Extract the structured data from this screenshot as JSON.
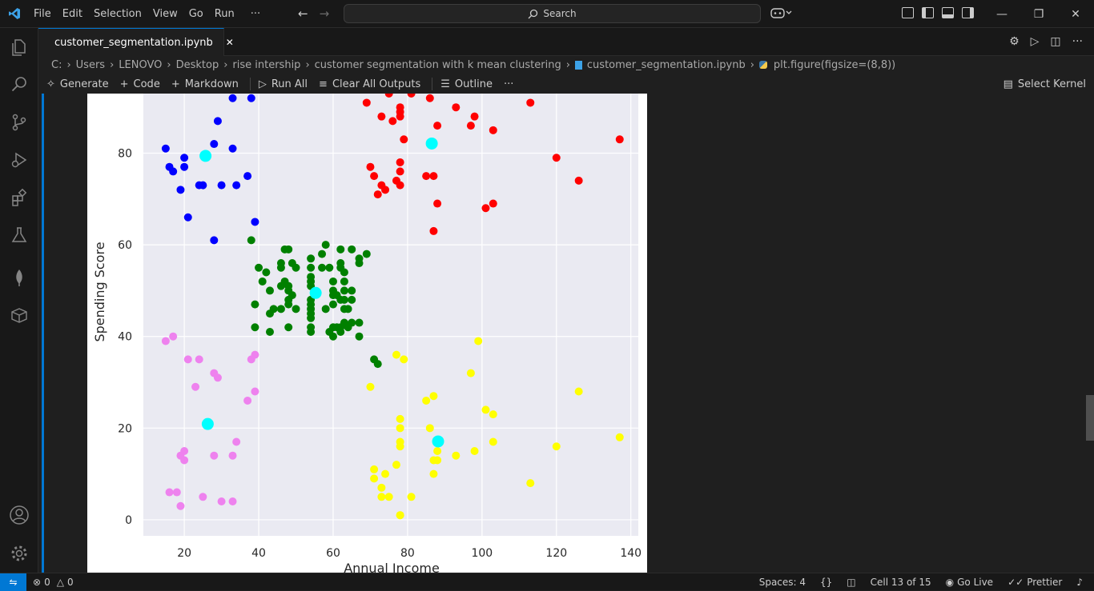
{
  "menu": [
    "File",
    "Edit",
    "Selection",
    "View",
    "Go",
    "Run",
    "···"
  ],
  "search": {
    "label": "Search"
  },
  "tab": {
    "title": "customer_segmentation.ipynb",
    "close": "✕"
  },
  "breadcrumb": [
    "C:",
    "Users",
    "LENOVO",
    "Desktop",
    "rise intership",
    "customer segmentation with k mean clustering",
    "customer_segmentation.ipynb",
    "plt.figure(figsize=(8,8))"
  ],
  "toolbar": {
    "generate": "Generate",
    "code": "Code",
    "markdown": "Markdown",
    "run_all": "Run All",
    "clear_outputs": "Clear All Outputs",
    "outline": "Outline",
    "more": "···",
    "select_kernel": "Select Kernel"
  },
  "status": {
    "errors": "0",
    "warnings": "0",
    "spaces": "Spaces: 4",
    "braces": "{}",
    "cell": "Cell 13 of 15",
    "golive": "Go Live",
    "prettier": "Prettier"
  },
  "colors": {
    "accent": "#0078d4",
    "plot_bg": "#eaeaf2"
  },
  "chart_data": {
    "type": "scatter",
    "xlabel": "Annual Income",
    "ylabel": "Spending Score",
    "xlim": [
      9,
      142
    ],
    "ylim": [
      -3.5,
      93
    ],
    "xticks": [
      20,
      40,
      60,
      80,
      100,
      120,
      140
    ],
    "yticks": [
      0,
      20,
      40,
      60,
      80
    ],
    "grid": true,
    "series": [
      {
        "color": "blue",
        "points": [
          [
            15,
            81
          ],
          [
            16,
            77
          ],
          [
            17,
            76
          ],
          [
            19,
            72
          ],
          [
            20,
            77
          ],
          [
            20,
            79
          ],
          [
            21,
            66
          ],
          [
            24,
            73
          ],
          [
            25,
            73
          ],
          [
            28,
            82
          ],
          [
            28,
            61
          ],
          [
            29,
            87
          ],
          [
            30,
            73
          ],
          [
            33,
            81
          ],
          [
            34,
            73
          ],
          [
            37,
            75
          ],
          [
            39,
            65
          ],
          [
            33,
            92
          ],
          [
            38,
            92
          ]
        ]
      },
      {
        "color": "red",
        "points": [
          [
            69,
            91
          ],
          [
            70,
            77
          ],
          [
            71,
            75
          ],
          [
            72,
            71
          ],
          [
            73,
            88
          ],
          [
            73,
            73
          ],
          [
            74,
            72
          ],
          [
            75,
            93
          ],
          [
            76,
            87
          ],
          [
            77,
            74
          ],
          [
            78,
            88
          ],
          [
            78,
            89
          ],
          [
            78,
            90
          ],
          [
            78,
            76
          ],
          [
            78,
            78
          ],
          [
            78,
            73
          ],
          [
            79,
            83
          ],
          [
            81,
            93
          ],
          [
            85,
            75
          ],
          [
            86,
            92
          ],
          [
            87,
            75
          ],
          [
            87,
            63
          ],
          [
            88,
            86
          ],
          [
            88,
            69
          ],
          [
            93,
            90
          ],
          [
            97,
            86
          ],
          [
            98,
            88
          ],
          [
            101,
            68
          ],
          [
            103,
            69
          ],
          [
            103,
            85
          ],
          [
            113,
            91
          ],
          [
            120,
            79
          ],
          [
            126,
            74
          ],
          [
            137,
            83
          ]
        ]
      },
      {
        "color": "green",
        "points": [
          [
            38,
            61
          ],
          [
            39,
            42
          ],
          [
            39,
            47
          ],
          [
            40,
            55
          ],
          [
            41,
            52
          ],
          [
            42,
            54
          ],
          [
            43,
            41
          ],
          [
            43,
            45
          ],
          [
            43,
            50
          ],
          [
            44,
            46
          ],
          [
            46,
            51
          ],
          [
            46,
            46
          ],
          [
            46,
            56
          ],
          [
            46,
            55
          ],
          [
            47,
            52
          ],
          [
            47,
            59
          ],
          [
            48,
            51
          ],
          [
            48,
            59
          ],
          [
            48,
            50
          ],
          [
            48,
            48
          ],
          [
            48,
            47
          ],
          [
            48,
            42
          ],
          [
            49,
            49
          ],
          [
            49,
            56
          ],
          [
            50,
            46
          ],
          [
            50,
            55
          ],
          [
            54,
            47
          ],
          [
            54,
            45
          ],
          [
            54,
            53
          ],
          [
            54,
            48
          ],
          [
            54,
            52
          ],
          [
            54,
            42
          ],
          [
            54,
            51
          ],
          [
            54,
            55
          ],
          [
            54,
            41
          ],
          [
            54,
            44
          ],
          [
            54,
            57
          ],
          [
            54,
            46
          ],
          [
            57,
            58
          ],
          [
            57,
            55
          ],
          [
            58,
            60
          ],
          [
            58,
            46
          ],
          [
            59,
            55
          ],
          [
            59,
            41
          ],
          [
            60,
            49
          ],
          [
            60,
            40
          ],
          [
            60,
            42
          ],
          [
            60,
            52
          ],
          [
            60,
            47
          ],
          [
            60,
            50
          ],
          [
            61,
            42
          ],
          [
            61,
            49
          ],
          [
            62,
            41
          ],
          [
            62,
            48
          ],
          [
            62,
            59
          ],
          [
            62,
            55
          ],
          [
            62,
            56
          ],
          [
            62,
            42
          ],
          [
            63,
            50
          ],
          [
            63,
            46
          ],
          [
            63,
            43
          ],
          [
            63,
            48
          ],
          [
            63,
            52
          ],
          [
            63,
            54
          ],
          [
            64,
            42
          ],
          [
            64,
            46
          ],
          [
            65,
            48
          ],
          [
            65,
            50
          ],
          [
            65,
            43
          ],
          [
            65,
            59
          ],
          [
            67,
            43
          ],
          [
            67,
            57
          ],
          [
            67,
            56
          ],
          [
            67,
            40
          ],
          [
            69,
            58
          ],
          [
            71,
            35
          ],
          [
            72,
            34
          ]
        ]
      },
      {
        "color": "violet",
        "points": [
          [
            15,
            39
          ],
          [
            16,
            6
          ],
          [
            17,
            40
          ],
          [
            18,
            6
          ],
          [
            19,
            3
          ],
          [
            19,
            14
          ],
          [
            20,
            15
          ],
          [
            20,
            13
          ],
          [
            21,
            35
          ],
          [
            23,
            29
          ],
          [
            24,
            35
          ],
          [
            25,
            5
          ],
          [
            28,
            14
          ],
          [
            28,
            32
          ],
          [
            29,
            31
          ],
          [
            30,
            4
          ],
          [
            33,
            4
          ],
          [
            33,
            14
          ],
          [
            34,
            17
          ],
          [
            37,
            26
          ],
          [
            38,
            35
          ],
          [
            39,
            36
          ],
          [
            39,
            28
          ]
        ]
      },
      {
        "color": "yellow",
        "points": [
          [
            70,
            29
          ],
          [
            71,
            11
          ],
          [
            71,
            9
          ],
          [
            73,
            5
          ],
          [
            73,
            7
          ],
          [
            74,
            10
          ],
          [
            75,
            5
          ],
          [
            77,
            12
          ],
          [
            77,
            36
          ],
          [
            78,
            22
          ],
          [
            78,
            17
          ],
          [
            78,
            20
          ],
          [
            78,
            16
          ],
          [
            78,
            1
          ],
          [
            78,
            1
          ],
          [
            79,
            35
          ],
          [
            81,
            5
          ],
          [
            85,
            26
          ],
          [
            86,
            20
          ],
          [
            87,
            27
          ],
          [
            87,
            13
          ],
          [
            87,
            10
          ],
          [
            88,
            13
          ],
          [
            88,
            15
          ],
          [
            93,
            14
          ],
          [
            97,
            32
          ],
          [
            98,
            15
          ],
          [
            99,
            39
          ],
          [
            101,
            24
          ],
          [
            103,
            17
          ],
          [
            103,
            23
          ],
          [
            113,
            8
          ],
          [
            120,
            16
          ],
          [
            126,
            28
          ],
          [
            137,
            18
          ]
        ]
      },
      {
        "color": "cyan",
        "centroid": true,
        "points": [
          [
            25.7,
            79.4
          ],
          [
            86.5,
            82.1
          ],
          [
            55.3,
            49.5
          ],
          [
            26.3,
            20.9
          ],
          [
            88.2,
            17.1
          ]
        ]
      }
    ]
  }
}
